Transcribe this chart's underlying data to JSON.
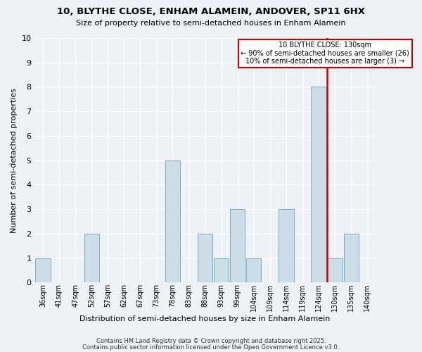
{
  "title": "10, BLYTHE CLOSE, ENHAM ALAMEIN, ANDOVER, SP11 6HX",
  "subtitle": "Size of property relative to semi-detached houses in Enham Alamein",
  "xlabel": "Distribution of semi-detached houses by size in Enham Alamein",
  "ylabel": "Number of semi-detached properties",
  "bins": [
    "36sqm",
    "41sqm",
    "47sqm",
    "52sqm",
    "57sqm",
    "62sqm",
    "67sqm",
    "73sqm",
    "78sqm",
    "83sqm",
    "88sqm",
    "93sqm",
    "99sqm",
    "104sqm",
    "109sqm",
    "114sqm",
    "119sqm",
    "124sqm",
    "130sqm",
    "135sqm",
    "140sqm"
  ],
  "values": [
    1,
    0,
    0,
    2,
    0,
    0,
    0,
    0,
    5,
    0,
    2,
    1,
    3,
    1,
    0,
    3,
    0,
    8,
    1,
    2,
    0
  ],
  "bar_color": "#ccdde8",
  "bar_edge_color": "#7aaacc",
  "property_bin_index": 18,
  "property_label": "10 BLYTHE CLOSE: 130sqm",
  "annotation_line1": "← 90% of semi-detached houses are smaller (26)",
  "annotation_line2": "10% of semi-detached houses are larger (3) →",
  "red_color": "#cc0000",
  "background_color": "#eef2f6",
  "grid_color": "#ffffff",
  "ylim": [
    0,
    10
  ],
  "yticks": [
    0,
    1,
    2,
    3,
    4,
    5,
    6,
    7,
    8,
    9,
    10
  ],
  "footer1": "Contains HM Land Registry data © Crown copyright and database right 2025.",
  "footer2": "Contains public sector information licensed under the Open Government Licence v3.0."
}
